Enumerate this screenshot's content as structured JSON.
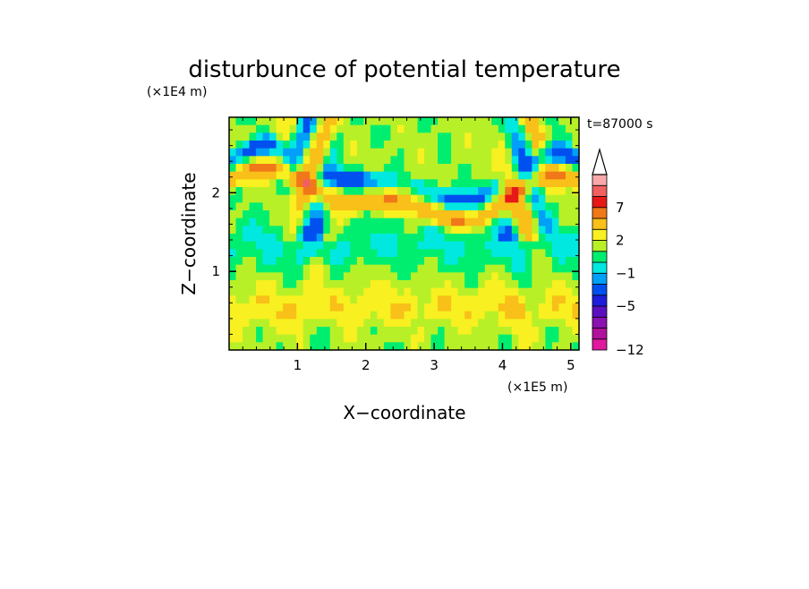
{
  "chart_data": {
    "type": "heatmap",
    "title": "disturbunce of potential temperature",
    "time_label": "t=87000 s",
    "xlabel": "X−coordinate",
    "ylabel": "Z−coordinate",
    "x_unit": "(×1E5 m)",
    "y_unit": "(×1E4 m)",
    "xlim": [
      0,
      5.12
    ],
    "ylim": [
      0,
      2.96
    ],
    "x_ticks": [
      1,
      2,
      3,
      4,
      5
    ],
    "x_tick_labels": [
      "1",
      "2",
      "3",
      "4",
      "5"
    ],
    "y_ticks": [
      1,
      2
    ],
    "y_tick_labels": [
      "1",
      "2"
    ],
    "colorbar": {
      "levels": [
        -12,
        -11,
        -9,
        -7,
        -5,
        -4,
        -2,
        -1,
        0,
        1,
        2,
        3,
        5,
        7,
        8,
        10,
        12
      ],
      "colors": [
        "#e0199f",
        "#b0109c",
        "#8a12b0",
        "#5a10c0",
        "#1d1ddc",
        "#0050f0",
        "#00a0f8",
        "#00e8e0",
        "#00ee70",
        "#b8f028",
        "#f8f020",
        "#f8c018",
        "#f07818",
        "#e81818",
        "#f06060",
        "#f8a8a8"
      ],
      "tick_values": [
        7,
        2,
        -1,
        -5,
        -12
      ],
      "tick_labels": [
        "7",
        "2",
        "−1",
        "−5",
        "−12"
      ],
      "extend_top": true
    },
    "field_description_values": {
      "grid_columns": 52,
      "grid_rows": 30,
      "dominant_low_level": 1,
      "mid_band": -0.5,
      "upper_positive_band": 2.5
    }
  }
}
